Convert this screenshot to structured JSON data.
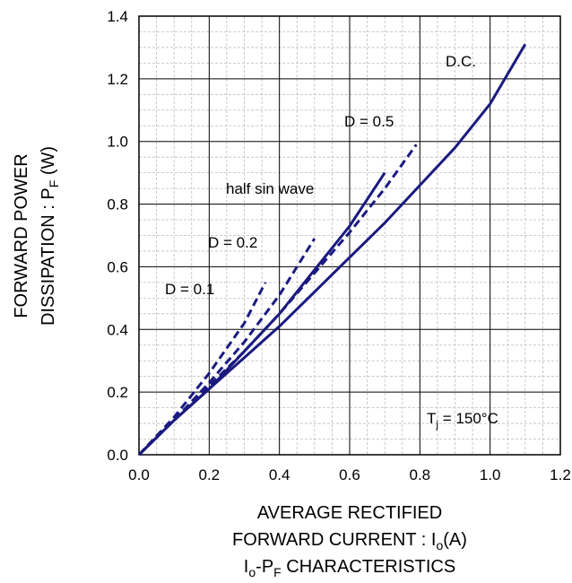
{
  "chart_data": {
    "type": "line",
    "xlabel_line1": "AVERAGE RECTIFIED",
    "xlabel_line2_prefix": "FORWARD CURRENT : I",
    "xlabel_line2_sub": "o",
    "xlabel_line2_suffix": "(A)",
    "caption_prefix": "I",
    "caption_sub1": "o",
    "caption_mid": "-P",
    "caption_sub2": "F",
    "caption_suffix": " CHARACTERISTICS",
    "ylabel_line1": "FORWARD POWER",
    "ylabel_line2_prefix": "DISSIPATION : P",
    "ylabel_line2_sub": "F",
    "ylabel_line2_suffix": " (W)",
    "xlim": [
      0.0,
      1.2
    ],
    "ylim": [
      0.0,
      1.4
    ],
    "x_ticks": [
      "0.0",
      "0.2",
      "0.4",
      "0.6",
      "0.8",
      "1.0",
      "1.2"
    ],
    "y_ticks": [
      "0.0",
      "0.2",
      "0.4",
      "0.6",
      "0.8",
      "1.0",
      "1.2",
      "1.4"
    ],
    "grid": "major and minor",
    "line_color": "#1a1a80",
    "condition_prefix": "T",
    "condition_sub": "j",
    "condition_suffix": " = 150°C",
    "series": [
      {
        "name": "D.C.",
        "style": "solid",
        "x": [
          0.0,
          0.1,
          0.2,
          0.3,
          0.4,
          0.5,
          0.6,
          0.7,
          0.8,
          0.9,
          1.0,
          1.1
        ],
        "y": [
          0.0,
          0.11,
          0.21,
          0.31,
          0.41,
          0.52,
          0.63,
          0.74,
          0.86,
          0.98,
          1.12,
          1.31
        ]
      },
      {
        "name": "half sin wave",
        "style": "solid",
        "x": [
          0.0,
          0.1,
          0.2,
          0.3,
          0.4,
          0.5,
          0.6,
          0.7
        ],
        "y": [
          0.0,
          0.11,
          0.21,
          0.33,
          0.45,
          0.59,
          0.73,
          0.9
        ]
      },
      {
        "name": "D = 0.5",
        "style": "dashed",
        "x": [
          0.0,
          0.1,
          0.2,
          0.3,
          0.4,
          0.5,
          0.6,
          0.7,
          0.79
        ],
        "y": [
          0.0,
          0.11,
          0.22,
          0.33,
          0.45,
          0.58,
          0.71,
          0.85,
          0.99
        ]
      },
      {
        "name": "D = 0.2",
        "style": "dashed",
        "x": [
          0.0,
          0.1,
          0.2,
          0.3,
          0.4,
          0.5
        ],
        "y": [
          0.0,
          0.11,
          0.23,
          0.36,
          0.51,
          0.69
        ]
      },
      {
        "name": "D = 0.1",
        "style": "dashed",
        "x": [
          0.0,
          0.1,
          0.2,
          0.3,
          0.36
        ],
        "y": [
          0.0,
          0.12,
          0.26,
          0.42,
          0.55
        ]
      }
    ]
  }
}
